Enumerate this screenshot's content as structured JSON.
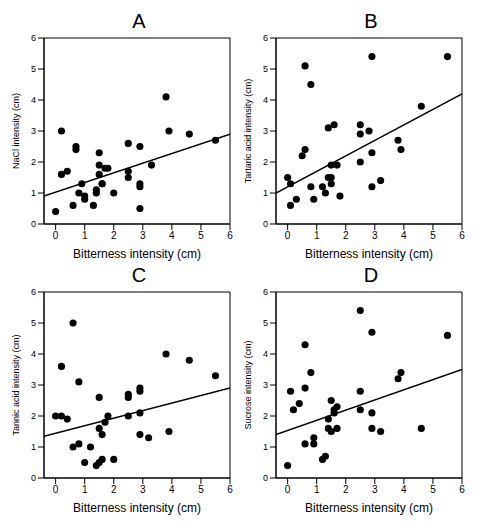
{
  "chart_data": [
    {
      "type": "scatter",
      "title": "A",
      "x_label": "Bitterness intensity (cm)",
      "y_label": "NaCl intensity (cm)",
      "xlim": [
        -0.4,
        6
      ],
      "xticks": [
        0,
        1,
        2,
        3,
        4,
        5,
        6
      ],
      "ylim": [
        0,
        6
      ],
      "yticks": [
        0,
        1,
        2,
        3,
        4,
        5,
        6
      ],
      "grid": false,
      "series": [
        {
          "type": "scatter",
          "color": "#000000",
          "marker": "circle",
          "x": [
            0,
            0.2,
            0.2,
            0.4,
            0.6,
            0.7,
            0.7,
            0.8,
            0.9,
            1.0,
            1.0,
            1.3,
            1.4,
            1.4,
            1.5,
            1.5,
            1.5,
            1.6,
            1.6,
            1.7,
            1.8,
            2.0,
            2.5,
            2.5,
            2.5,
            2.9,
            2.9,
            2.9,
            2.9,
            3.3,
            3.8,
            3.9,
            4.6,
            5.5
          ],
          "values": [
            0.4,
            1.6,
            3.0,
            1.7,
            0.6,
            2.5,
            2.4,
            1.0,
            1.3,
            0.9,
            0.8,
            0.6,
            1.0,
            1.1,
            1.9,
            1.6,
            2.3,
            1.3,
            1.3,
            1.8,
            1.8,
            1.0,
            2.6,
            1.7,
            1.5,
            0.5,
            1.3,
            1.2,
            2.5,
            1.9,
            4.1,
            3.0,
            2.9,
            2.7
          ]
        },
        {
          "type": "line",
          "color": "#000000",
          "x": [
            -0.4,
            6
          ],
          "values": [
            0.9,
            2.9
          ]
        }
      ]
    },
    {
      "type": "scatter",
      "title": "B",
      "x_label": "Bitterness intensity (cm)",
      "y_label": "Tartaric acid intensity (cm)",
      "xlim": [
        -0.4,
        6
      ],
      "xticks": [
        0,
        1,
        2,
        3,
        4,
        5,
        6
      ],
      "ylim": [
        0,
        6
      ],
      "yticks": [
        0,
        1,
        2,
        3,
        4,
        5,
        6
      ],
      "grid": false,
      "series": [
        {
          "type": "scatter",
          "color": "#000000",
          "marker": "circle",
          "x": [
            0,
            0.1,
            0.1,
            0.3,
            0.5,
            0.6,
            0.6,
            0.8,
            0.8,
            0.9,
            1.2,
            1.3,
            1.4,
            1.4,
            1.5,
            1.5,
            1.5,
            1.6,
            1.7,
            1.8,
            2.5,
            2.5,
            2.5,
            2.8,
            2.9,
            2.9,
            2.9,
            3.2,
            3.8,
            3.9,
            4.6,
            5.5
          ],
          "values": [
            1.5,
            0.6,
            1.3,
            0.8,
            2.2,
            5.1,
            2.4,
            4.5,
            1.2,
            0.8,
            1.2,
            1.0,
            1.5,
            3.1,
            1.5,
            1.3,
            1.9,
            3.2,
            1.9,
            0.9,
            3.2,
            2.9,
            2.0,
            3.0,
            1.2,
            2.3,
            5.4,
            1.4,
            2.7,
            2.4,
            3.8,
            5.4
          ]
        },
        {
          "type": "line",
          "color": "#000000",
          "x": [
            -0.4,
            6
          ],
          "values": [
            1.0,
            4.2
          ]
        }
      ]
    },
    {
      "type": "scatter",
      "title": "C",
      "x_label": "Bitterness intensity (cm)",
      "y_label": "Tannic acid intensity (cm)",
      "xlim": [
        -0.4,
        6
      ],
      "xticks": [
        0,
        1,
        2,
        3,
        4,
        5,
        6
      ],
      "ylim": [
        0,
        6
      ],
      "yticks": [
        0,
        1,
        2,
        3,
        4,
        5,
        6
      ],
      "grid": false,
      "series": [
        {
          "type": "scatter",
          "color": "#000000",
          "marker": "circle",
          "x": [
            0,
            0.2,
            0.2,
            0.4,
            0.6,
            0.6,
            0.8,
            0.8,
            1.0,
            1.2,
            1.4,
            1.5,
            1.5,
            1.5,
            1.6,
            1.6,
            1.7,
            1.8,
            2.0,
            2.5,
            2.5,
            2.5,
            2.9,
            2.9,
            2.9,
            2.9,
            3.2,
            3.8,
            3.9,
            4.6,
            5.5
          ],
          "values": [
            2.0,
            3.6,
            2.0,
            1.9,
            5.0,
            1.0,
            3.1,
            1.1,
            0.5,
            1.0,
            0.4,
            1.6,
            0.5,
            2.6,
            0.6,
            1.4,
            1.8,
            2.0,
            0.6,
            2.0,
            2.6,
            2.7,
            1.4,
            2.9,
            2.8,
            2.1,
            1.3,
            4.0,
            1.5,
            3.8,
            3.3
          ]
        },
        {
          "type": "line",
          "color": "#000000",
          "x": [
            -0.4,
            6
          ],
          "values": [
            1.35,
            2.9
          ]
        }
      ]
    },
    {
      "type": "scatter",
      "title": "D",
      "x_label": "Bitterness intensity (cm)",
      "y_label": "Sucrose intensity (cm)",
      "xlim": [
        -0.4,
        6
      ],
      "xticks": [
        0,
        1,
        2,
        3,
        4,
        5,
        6
      ],
      "ylim": [
        0,
        6
      ],
      "yticks": [
        0,
        1,
        2,
        3,
        4,
        5,
        6
      ],
      "grid": false,
      "series": [
        {
          "type": "scatter",
          "color": "#000000",
          "marker": "circle",
          "x": [
            0,
            0.1,
            0.2,
            0.4,
            0.6,
            0.6,
            0.6,
            0.8,
            0.9,
            0.9,
            1.2,
            1.3,
            1.4,
            1.4,
            1.5,
            1.5,
            1.6,
            1.6,
            1.7,
            1.7,
            2.5,
            2.5,
            2.5,
            2.9,
            2.9,
            2.9,
            3.2,
            3.8,
            3.9,
            4.6,
            5.5
          ],
          "values": [
            0.4,
            2.8,
            2.2,
            2.4,
            4.3,
            2.9,
            1.1,
            3.4,
            1.3,
            1.1,
            0.6,
            0.7,
            1.9,
            1.6,
            2.5,
            1.5,
            2.2,
            2.1,
            2.3,
            1.6,
            5.4,
            2.8,
            2.2,
            4.7,
            2.1,
            1.6,
            1.5,
            3.2,
            3.4,
            1.6,
            4.6
          ]
        },
        {
          "type": "line",
          "color": "#000000",
          "x": [
            -0.4,
            6
          ],
          "values": [
            1.4,
            3.5
          ]
        }
      ]
    }
  ]
}
